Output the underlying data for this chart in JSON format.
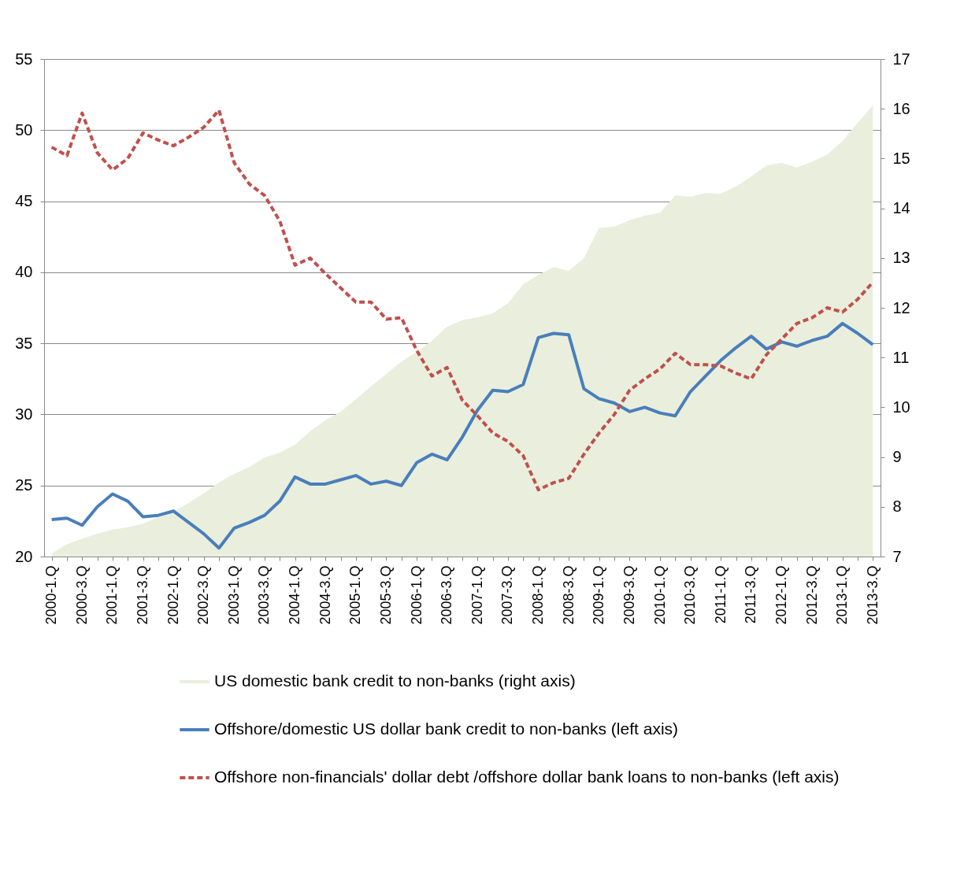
{
  "chart_data": {
    "type": "line",
    "categories": [
      "2000-1.Q",
      null,
      "2000-3.Q",
      null,
      "2001-1.Q",
      null,
      "2001-3.Q",
      null,
      "2002-1.Q",
      null,
      "2002-3.Q",
      null,
      "2003-1.Q",
      null,
      "2003-3.Q",
      null,
      "2004-1.Q",
      null,
      "2004-3.Q",
      null,
      "2005-1.Q",
      null,
      "2005-3.Q",
      null,
      "2006-1.Q",
      null,
      "2006-3.Q",
      null,
      "2007-1.Q",
      null,
      "2007-3.Q",
      null,
      "2008-1.Q",
      null,
      "2008-3.Q",
      null,
      "2009-1.Q",
      null,
      "2009-3.Q",
      null,
      "2010-1.Q",
      null,
      "2010-3.Q",
      null,
      "2011-1.Q",
      null,
      "2011-3.Q",
      null,
      "2012-1.Q",
      null,
      "2012-3.Q",
      null,
      "2013-1.Q",
      null,
      "2013-3.Q"
    ],
    "series": [
      {
        "name": "US domestic bank credit to non-banks (right axis)",
        "type": "area",
        "axis": "y2",
        "color": "#e9efdc",
        "values": [
          7.06,
          7.25,
          7.36,
          7.46,
          7.54,
          7.59,
          7.66,
          7.79,
          7.89,
          8.08,
          8.27,
          8.49,
          8.66,
          8.8,
          8.99,
          9.09,
          9.25,
          9.52,
          9.74,
          9.91,
          10.16,
          10.42,
          10.67,
          10.92,
          11.11,
          11.34,
          11.62,
          11.75,
          11.81,
          11.89,
          12.09,
          12.47,
          12.66,
          12.82,
          12.74,
          13.0,
          13.61,
          13.63,
          13.76,
          13.85,
          13.91,
          14.26,
          14.23,
          14.31,
          14.29,
          14.44,
          14.64,
          14.86,
          14.91,
          14.82,
          14.94,
          15.08,
          15.35,
          15.72,
          16.07
        ]
      },
      {
        "name": "Offshore/domestic US dollar bank credit to non-banks (left axis)",
        "line_style": "solid",
        "color": "#4a7ebb",
        "values": [
          22.6,
          22.7,
          22.2,
          23.5,
          24.4,
          23.9,
          22.8,
          22.9,
          23.2,
          22.4,
          21.6,
          20.6,
          22.0,
          22.4,
          22.9,
          23.9,
          25.6,
          25.1,
          25.1,
          25.4,
          25.7,
          25.1,
          25.3,
          25.0,
          26.6,
          27.2,
          26.8,
          28.4,
          30.3,
          31.7,
          31.6,
          32.1,
          35.4,
          35.7,
          35.6,
          31.8,
          31.1,
          30.8,
          30.2,
          30.5,
          30.1,
          29.9,
          31.6,
          32.7,
          33.8,
          34.7,
          35.5,
          34.6,
          35.1,
          34.8,
          35.2,
          35.5,
          36.4,
          35.7,
          34.9
        ]
      },
      {
        "name": "Offshore non-financials' dollar debt /offshore dollar bank loans to non-banks (left axis)",
        "line_style": "dashed",
        "color": "#c0504d",
        "values": [
          48.8,
          48.2,
          51.2,
          48.4,
          47.2,
          48.0,
          49.8,
          49.3,
          48.9,
          49.5,
          50.2,
          51.4,
          47.7,
          46.2,
          45.4,
          43.6,
          40.5,
          41.0,
          39.9,
          38.9,
          37.9,
          37.9,
          36.7,
          36.8,
          34.5,
          32.7,
          33.3,
          31.0,
          29.9,
          28.7,
          28.1,
          27.1,
          24.7,
          25.2,
          25.5,
          27.2,
          28.7,
          30.0,
          31.7,
          32.5,
          33.2,
          34.3,
          33.5,
          33.5,
          33.4,
          32.9,
          32.5,
          34.2,
          35.3,
          36.4,
          36.8,
          37.5,
          37.2,
          38.1,
          39.3
        ]
      }
    ],
    "ylim": [
      20,
      55
    ],
    "yticks": [
      20,
      25,
      30,
      35,
      40,
      45,
      50,
      55
    ],
    "y2lim": [
      7,
      17
    ],
    "y2ticks": [
      7,
      8,
      9,
      10,
      11,
      12,
      13,
      14,
      15,
      16,
      17
    ],
    "grid": "y",
    "legend": "bottom"
  }
}
